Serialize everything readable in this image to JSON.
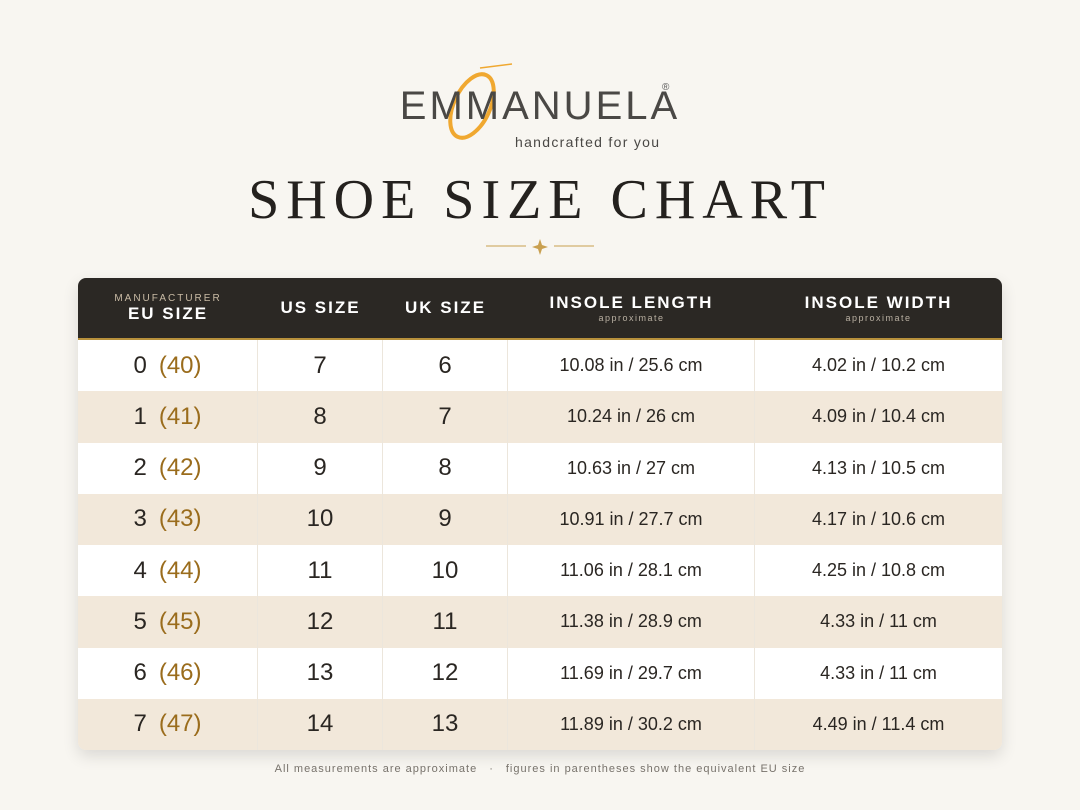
{
  "header": {
    "brand": "EMMANUELA",
    "registered": "®",
    "tagline": "handcrafted for you",
    "title": "SHOE SIZE CHART"
  },
  "table": {
    "columns": [
      {
        "kicker": "MANUFACTURER",
        "label": "EU SIZE"
      },
      {
        "label": "US SIZE"
      },
      {
        "label": "UK SIZE"
      },
      {
        "label": "INSOLE LENGTH",
        "sub": "approximate"
      },
      {
        "label": "INSOLE WIDTH",
        "sub": "approximate"
      }
    ],
    "rows": [
      [
        "0",
        "(40)",
        "7",
        "6",
        "10.08 in / 25.6 cm",
        "4.02 in / 10.2 cm"
      ],
      [
        "1",
        "(41)",
        "8",
        "7",
        "10.24 in / 26 cm",
        "4.09 in / 10.4 cm"
      ],
      [
        "2",
        "(42)",
        "9",
        "8",
        "10.63 in / 27 cm",
        "4.13 in / 10.5 cm"
      ],
      [
        "3",
        "(43)",
        "10",
        "9",
        "10.91 in / 27.7 cm",
        "4.17 in / 10.6 cm"
      ],
      [
        "4",
        "(44)",
        "11",
        "10",
        "11.06 in / 28.1 cm",
        "4.25 in / 10.8 cm"
      ],
      [
        "5",
        "(45)",
        "12",
        "11",
        "11.38 in / 28.9 cm",
        "4.33 in / 11 cm"
      ],
      [
        "6",
        "(46)",
        "13",
        "12",
        "11.69 in / 29.7 cm",
        "4.33 in / 11 cm"
      ],
      [
        "7",
        "(47)",
        "14",
        "13",
        "11.89 in / 30.2 cm",
        "4.49 in / 11.4 cm"
      ]
    ]
  },
  "footer": {
    "notes": [
      "All measurements are approximate",
      "·",
      "figures in parentheses show the equivalent EU size"
    ]
  }
}
